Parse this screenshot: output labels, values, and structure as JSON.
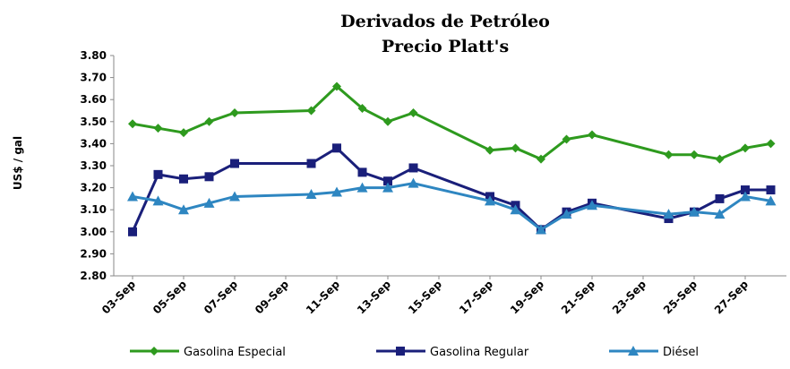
{
  "chart_data": {
    "type": "line",
    "title": [
      "Derivados de Petróleo",
      "Precio Platt's"
    ],
    "y_label": "US$ / gal",
    "x": [
      "03-Sep",
      "04-Sep",
      "05-Sep",
      "06-Sep",
      "07-Sep",
      "10-Sep",
      "11-Sep",
      "12-Sep",
      "13-Sep",
      "14-Sep",
      "17-Sep",
      "18-Sep",
      "19-Sep",
      "20-Sep",
      "21-Sep",
      "24-Sep",
      "25-Sep",
      "26-Sep",
      "27-Sep",
      "28-Sep"
    ],
    "xticks": [
      "03-Sep",
      "05-Sep",
      "07-Sep",
      "09-Sep",
      "11-Sep",
      "13-Sep",
      "15-Sep",
      "17-Sep",
      "19-Sep",
      "21-Sep",
      "23-Sep",
      "25-Sep",
      "27-Sep"
    ],
    "ylim": [
      2.8,
      3.8
    ],
    "yticks": [
      {
        "value": 2.8,
        "label": "2.80"
      },
      {
        "value": 2.9,
        "label": "2.90"
      },
      {
        "value": 3.0,
        "label": "3.00"
      },
      {
        "value": 3.1,
        "label": "3.10"
      },
      {
        "value": 3.2,
        "label": "3.20"
      },
      {
        "value": 3.3,
        "label": "3.30"
      },
      {
        "value": 3.4,
        "label": "3.40"
      },
      {
        "value": 3.5,
        "label": "3.50"
      },
      {
        "value": 3.6,
        "label": "3.60"
      },
      {
        "value": 3.7,
        "label": "3.70"
      },
      {
        "value": 3.8,
        "label": "3.80"
      }
    ],
    "series": [
      {
        "name": "Gasolina Especial",
        "color": "#2e9a1e",
        "marker": "diamond",
        "values": [
          3.49,
          3.47,
          3.45,
          3.5,
          3.54,
          3.55,
          3.66,
          3.56,
          3.5,
          3.54,
          3.37,
          3.38,
          3.33,
          3.42,
          3.44,
          3.35,
          3.35,
          3.33,
          3.38,
          3.4
        ]
      },
      {
        "name": "Gasolina Regular",
        "color": "#1a1f7a",
        "marker": "square",
        "values": [
          3.0,
          3.26,
          3.24,
          3.25,
          3.31,
          3.31,
          3.38,
          3.27,
          3.23,
          3.29,
          3.16,
          3.12,
          3.01,
          3.09,
          3.13,
          3.06,
          3.09,
          3.15,
          3.19,
          3.19
        ]
      },
      {
        "name": "Diésel",
        "color": "#2e86c1",
        "marker": "triangle",
        "values": [
          3.16,
          3.14,
          3.1,
          3.13,
          3.16,
          3.17,
          3.18,
          3.2,
          3.2,
          3.22,
          3.14,
          3.1,
          3.01,
          3.08,
          3.12,
          3.08,
          3.09,
          3.08,
          3.16,
          3.14
        ]
      }
    ]
  }
}
